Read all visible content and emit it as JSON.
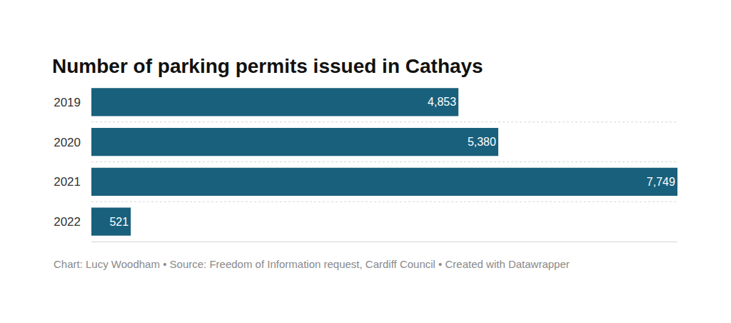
{
  "chart_data": {
    "type": "bar",
    "orientation": "horizontal",
    "title": "Number of parking permits issued in Cathays",
    "caption": "Chart: Lucy Woodham • Source: Freedom of Information request, Cardiff Council • Created with Datawrapper",
    "categories": [
      "2019",
      "2020",
      "2021",
      "2022"
    ],
    "values": [
      4853,
      5380,
      7749,
      521
    ],
    "value_labels": [
      "4,853",
      "5,380",
      "7,749",
      "521"
    ],
    "data_labels": true,
    "color": "#19607c",
    "xlim": [
      0,
      7749
    ],
    "grid": false,
    "tick_labels": "y"
  }
}
